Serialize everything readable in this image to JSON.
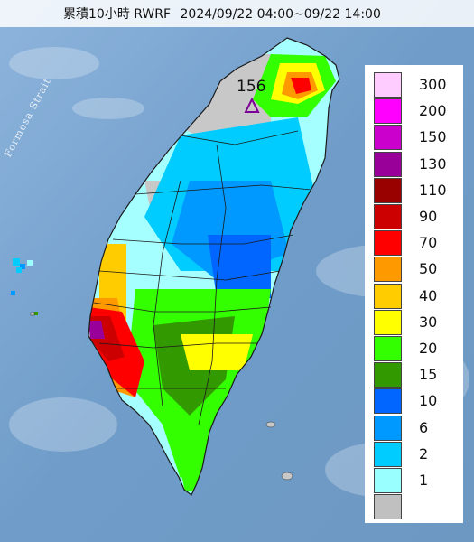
{
  "title": {
    "product": "累積10小時 RWRF",
    "period": "2024/09/22 04:00~09/22 14:00"
  },
  "map": {
    "sea_label": "Formosa Strait",
    "peak": {
      "value": "156",
      "marker": "triangle-marker-icon"
    },
    "colors": {
      "sea": "#7fa7cf",
      "land_base": "#c9c9c9",
      "land_1": "#a6ffff",
      "land_2": "#00ccff",
      "land_6": "#0099ff",
      "land_15": "#339900",
      "land_20": "#33ff00"
    }
  },
  "legend": {
    "items": [
      {
        "label": "300",
        "color": "#ffccff"
      },
      {
        "label": "200",
        "color": "#ff00ff"
      },
      {
        "label": "150",
        "color": "#cc00cc"
      },
      {
        "label": "130",
        "color": "#990099"
      },
      {
        "label": "110",
        "color": "#990000"
      },
      {
        "label": "90",
        "color": "#cc0000"
      },
      {
        "label": "70",
        "color": "#ff0000"
      },
      {
        "label": "50",
        "color": "#ff9900"
      },
      {
        "label": "40",
        "color": "#ffcc00"
      },
      {
        "label": "30",
        "color": "#ffff00"
      },
      {
        "label": "20",
        "color": "#33ff00"
      },
      {
        "label": "15",
        "color": "#339900"
      },
      {
        "label": "10",
        "color": "#0066ff"
      },
      {
        "label": "6",
        "color": "#0099ff"
      },
      {
        "label": "2",
        "color": "#00ccff"
      },
      {
        "label": "1",
        "color": "#99ffff"
      },
      {
        "label": "",
        "color": "#c0c0c0"
      }
    ]
  }
}
